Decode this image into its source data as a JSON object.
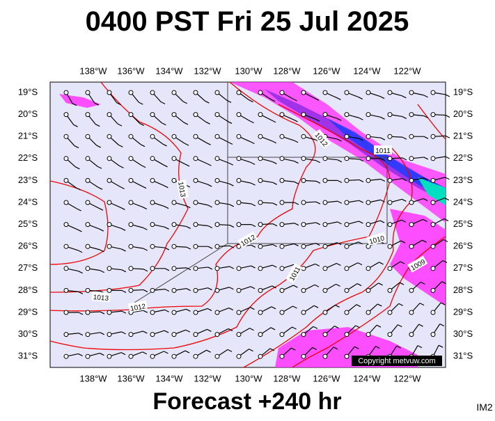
{
  "header": {
    "title": "0400 PST Fri 25 Jul 2025"
  },
  "map": {
    "lon_labels": [
      "138°W",
      "136°W",
      "134°W",
      "132°W",
      "130°W",
      "128°W",
      "126°W",
      "124°W",
      "122°W"
    ],
    "lat_labels": [
      "19°S",
      "20°S",
      "21°S",
      "22°S",
      "23°S",
      "24°S",
      "25°S",
      "26°S",
      "27°S",
      "28°S",
      "29°S",
      "30°S",
      "31°S"
    ],
    "isobar_labels": [
      "1012",
      "1011",
      "1013",
      "1012",
      "1010",
      "1009",
      "1011",
      "1013",
      "1012"
    ],
    "copyright": "Copyright metvuw.com"
  },
  "footer": {
    "forecast": "Forecast +240 hr",
    "code": "IM2"
  }
}
